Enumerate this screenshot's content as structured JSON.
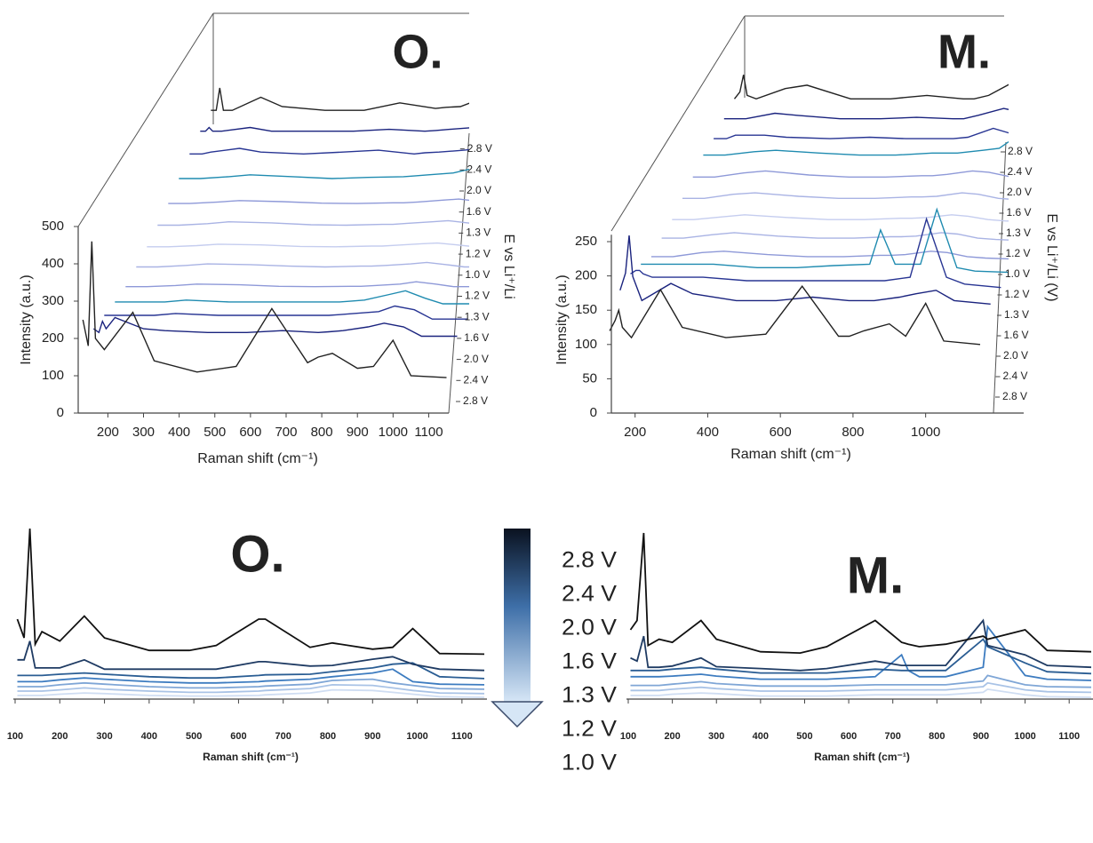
{
  "chart_data": [
    {
      "type": "line",
      "title": "O.",
      "x_label": "Raman shift (cm⁻¹)",
      "y_label": "Intensity (a.u.)",
      "depth_label": "E vs Li⁺/Li",
      "xlim": [
        120,
        1140
      ],
      "ylim": [
        0,
        500
      ],
      "xticks": [
        200,
        300,
        400,
        500,
        600,
        700,
        800,
        900,
        1000,
        1100
      ],
      "yticks": [
        0,
        100,
        200,
        300,
        400,
        500
      ],
      "x": [
        130,
        145,
        155,
        165,
        190,
        270,
        330,
        450,
        560,
        660,
        760,
        790,
        830,
        900,
        945,
        1000,
        1050,
        1150
      ],
      "series": [
        {
          "name": "2.8 V",
          "color": "#222222",
          "values": [
            250,
            180,
            460,
            200,
            170,
            270,
            140,
            110,
            125,
            280,
            135,
            150,
            160,
            120,
            125,
            195,
            100,
            95
          ]
        },
        {
          "name": "2.4 V",
          "color": "#1a237e",
          "values": [
            170,
            160,
            190,
            170,
            200,
            170,
            165,
            160,
            160,
            165,
            160,
            162,
            165,
            175,
            185,
            175,
            150,
            150
          ]
        },
        {
          "name": "2.0 V",
          "color": "#283593",
          "values": [
            150,
            150,
            150,
            150,
            150,
            150,
            155,
            150,
            150,
            150,
            150,
            152,
            155,
            160,
            175,
            165,
            140,
            140
          ]
        },
        {
          "name": "1.6 V",
          "color": "#1f8bb0",
          "values": [
            130,
            130,
            130,
            130,
            130,
            130,
            135,
            130,
            130,
            130,
            130,
            132,
            135,
            150,
            160,
            140,
            125,
            125
          ]
        },
        {
          "name": "1.3 V",
          "color": "#8e99d8",
          "values": [
            115,
            115,
            115,
            115,
            115,
            118,
            122,
            120,
            116,
            115,
            116,
            116,
            118,
            122,
            128,
            122,
            115,
            115
          ]
        },
        {
          "name": "1.2 V",
          "color": "#a9b3e4",
          "values": [
            112,
            112,
            112,
            112,
            112,
            116,
            120,
            118,
            114,
            112,
            114,
            114,
            116,
            120,
            124,
            118,
            112,
            112
          ]
        },
        {
          "name": "1.0 V",
          "color": "#c5cdef",
          "values": [
            110,
            110,
            110,
            110,
            110,
            113,
            117,
            115,
            111,
            110,
            112,
            112,
            114,
            118,
            120,
            115,
            110,
            110
          ]
        },
        {
          "name": "1.2 V",
          "color": "#a9b3e4",
          "values": [
            112,
            112,
            112,
            112,
            112,
            116,
            121,
            118,
            113,
            112,
            114,
            114,
            117,
            121,
            124,
            118,
            112,
            112
          ]
        },
        {
          "name": "1.3 V",
          "color": "#8e99d8",
          "values": [
            114,
            114,
            114,
            114,
            114,
            118,
            122,
            119,
            115,
            114,
            116,
            116,
            118,
            123,
            126,
            120,
            114,
            114
          ]
        },
        {
          "name": "1.6 V",
          "color": "#1f8bb0",
          "values": [
            125,
            125,
            125,
            125,
            125,
            130,
            135,
            130,
            125,
            128,
            130,
            132,
            135,
            140,
            150,
            140,
            120,
            120
          ]
        },
        {
          "name": "2.0 V",
          "color": "#283593",
          "values": [
            135,
            135,
            135,
            135,
            140,
            150,
            140,
            135,
            140,
            145,
            135,
            138,
            140,
            145,
            150,
            160,
            135,
            135
          ]
        },
        {
          "name": "2.4 V",
          "color": "#1a237e",
          "values": [
            140,
            140,
            150,
            140,
            140,
            150,
            140,
            140,
            140,
            145,
            140,
            142,
            145,
            150,
            155,
            150,
            165,
            130
          ]
        },
        {
          "name": "2.8 V",
          "color": "#222222",
          "values": [
            140,
            140,
            200,
            140,
            140,
            175,
            150,
            140,
            140,
            160,
            145,
            148,
            150,
            175,
            160,
            145,
            150,
            150
          ]
        }
      ]
    },
    {
      "type": "line",
      "title": "M.",
      "x_label": "Raman shift (cm⁻¹)",
      "y_label": "Intensity (a.u.)",
      "depth_label": "E vs Li⁺/Li (V)",
      "xlim": [
        120,
        1270
      ],
      "ylim": [
        0,
        260
      ],
      "xticks": [
        200,
        400,
        600,
        800,
        1000
      ],
      "yticks": [
        0,
        50,
        100,
        150,
        200,
        250
      ],
      "x": [
        130,
        145,
        155,
        165,
        190,
        270,
        330,
        450,
        560,
        660,
        760,
        790,
        830,
        900,
        945,
        1000,
        1050,
        1150
      ],
      "series": [
        {
          "name": "2.8 V",
          "color": "#222222",
          "values": [
            120,
            135,
            150,
            125,
            110,
            180,
            125,
            110,
            115,
            185,
            112,
            112,
            120,
            130,
            112,
            160,
            105,
            100
          ]
        },
        {
          "name": "2.4 V",
          "color": "#1a237e",
          "values": [
            150,
            175,
            230,
            170,
            135,
            160,
            145,
            135,
            135,
            140,
            135,
            135,
            135,
            140,
            145,
            150,
            135,
            130
          ]
        },
        {
          "name": "2.0 V",
          "color": "#283593",
          "values": [
            145,
            150,
            150,
            145,
            140,
            140,
            140,
            135,
            135,
            135,
            135,
            135,
            135,
            140,
            225,
            140,
            130,
            125
          ]
        },
        {
          "name": "1.6 V",
          "color": "#1f8bb0",
          "values": [
            130,
            130,
            130,
            130,
            130,
            130,
            130,
            125,
            125,
            128,
            130,
            180,
            130,
            130,
            210,
            125,
            120,
            118
          ]
        },
        {
          "name": "1.3 V",
          "color": "#8e99d8",
          "values": [
            112,
            112,
            112,
            112,
            112,
            118,
            120,
            115,
            112,
            112,
            114,
            114,
            115,
            120,
            118,
            112,
            110,
            108
          ]
        },
        {
          "name": "1.2 V",
          "color": "#a9b3e4",
          "values": [
            110,
            110,
            110,
            110,
            110,
            115,
            118,
            113,
            110,
            110,
            112,
            112,
            113,
            118,
            116,
            110,
            108,
            106
          ]
        },
        {
          "name": "1.0 V",
          "color": "#c5cdef",
          "values": [
            108,
            108,
            108,
            108,
            108,
            112,
            115,
            111,
            108,
            108,
            110,
            110,
            111,
            115,
            113,
            108,
            106,
            105
          ]
        },
        {
          "name": "1.2 V",
          "color": "#a9b3e4",
          "values": [
            110,
            110,
            110,
            110,
            110,
            116,
            118,
            113,
            110,
            110,
            112,
            112,
            113,
            118,
            116,
            110,
            108,
            106
          ]
        },
        {
          "name": "1.3 V",
          "color": "#8e99d8",
          "values": [
            112,
            112,
            112,
            112,
            112,
            118,
            121,
            115,
            112,
            112,
            114,
            114,
            116,
            121,
            119,
            113,
            110,
            108
          ]
        },
        {
          "name": "1.6 V",
          "color": "#1f8bb0",
          "values": [
            115,
            115,
            115,
            115,
            115,
            120,
            122,
            118,
            115,
            115,
            118,
            118,
            118,
            122,
            125,
            145,
            118,
            115
          ]
        },
        {
          "name": "2.0 V",
          "color": "#283593",
          "values": [
            110,
            110,
            110,
            110,
            115,
            115,
            112,
            110,
            112,
            110,
            110,
            110,
            112,
            125,
            118,
            150,
            110,
            108
          ]
        },
        {
          "name": "2.4 V",
          "color": "#1a237e",
          "values": [
            110,
            110,
            110,
            110,
            110,
            118,
            115,
            110,
            110,
            112,
            110,
            110,
            115,
            125,
            120,
            115,
            140,
            108
          ]
        },
        {
          "name": "2.8 V",
          "color": "#222222",
          "values": [
            110,
            120,
            145,
            115,
            110,
            125,
            130,
            110,
            110,
            115,
            110,
            110,
            115,
            135,
            120,
            115,
            130,
            115
          ]
        }
      ]
    },
    {
      "type": "line",
      "title": "O.",
      "x_label": "Raman shift (cm⁻¹)",
      "xlim": [
        100,
        1150
      ],
      "xticks": [
        100,
        200,
        300,
        400,
        500,
        600,
        700,
        800,
        900,
        1000,
        1100
      ],
      "x": [
        105,
        120,
        133,
        145,
        160,
        200,
        255,
        300,
        400,
        490,
        550,
        645,
        660,
        760,
        810,
        900,
        945,
        990,
        1050,
        1150
      ],
      "series": [
        {
          "name": "2.8 V",
          "color": "#111111",
          "values": [
            160,
            130,
            305,
            120,
            140,
            125,
            165,
            130,
            110,
            110,
            118,
            160,
            160,
            115,
            122,
            112,
            115,
            145,
            105,
            104
          ]
        },
        {
          "name": "2.4 V",
          "color": "#1f3b63",
          "values": [
            95,
            95,
            125,
            82,
            82,
            82,
            95,
            80,
            80,
            80,
            80,
            92,
            92,
            85,
            86,
            96,
            100,
            88,
            80,
            78
          ]
        },
        {
          "name": "2.0 V",
          "color": "#2a5d93",
          "values": [
            70,
            70,
            70,
            70,
            70,
            72,
            74,
            72,
            68,
            66,
            66,
            70,
            71,
            72,
            76,
            82,
            88,
            90,
            68,
            65
          ]
        },
        {
          "name": "1.6 V",
          "color": "#3d7cc0",
          "values": [
            60,
            60,
            60,
            60,
            60,
            63,
            66,
            64,
            60,
            58,
            58,
            60,
            61,
            64,
            68,
            74,
            80,
            60,
            56,
            55
          ]
        },
        {
          "name": "1.3 V",
          "color": "#7fa6d6",
          "values": [
            52,
            52,
            52,
            52,
            52,
            55,
            58,
            56,
            52,
            50,
            50,
            52,
            53,
            56,
            62,
            64,
            58,
            54,
            49,
            48
          ]
        },
        {
          "name": "1.2 V",
          "color": "#a9c3e6",
          "values": [
            45,
            45,
            45,
            45,
            45,
            47,
            50,
            48,
            45,
            43,
            43,
            45,
            46,
            49,
            55,
            54,
            50,
            46,
            42,
            41
          ]
        },
        {
          "name": "1.0 V",
          "color": "#cfddf2",
          "values": [
            38,
            38,
            38,
            38,
            38,
            40,
            42,
            41,
            38,
            37,
            37,
            38,
            39,
            42,
            47,
            46,
            43,
            40,
            36,
            35
          ]
        }
      ]
    },
    {
      "type": "line",
      "title": "M.",
      "x_label": "Raman shift (cm⁻¹)",
      "xlim": [
        100,
        1150
      ],
      "xticks": [
        100,
        200,
        300,
        400,
        500,
        600,
        700,
        800,
        900,
        1000,
        1100
      ],
      "x": [
        105,
        120,
        135,
        145,
        170,
        200,
        265,
        300,
        400,
        490,
        550,
        660,
        720,
        735,
        760,
        820,
        905,
        915,
        1000,
        1050,
        1150
      ],
      "series": [
        {
          "color": "#111111",
          "values": [
            145,
            160,
            300,
            120,
            130,
            125,
            160,
            130,
            110,
            108,
            118,
            160,
            125,
            122,
            118,
            122,
            135,
            130,
            145,
            112,
            110
          ]
        },
        {
          "color": "#1f3b63",
          "values": [
            100,
            95,
            135,
            85,
            85,
            87,
            100,
            86,
            83,
            80,
            83,
            95,
            88,
            88,
            88,
            88,
            160,
            120,
            105,
            88,
            85
          ]
        },
        {
          "color": "#2a5d93",
          "values": [
            80,
            80,
            80,
            80,
            80,
            82,
            85,
            82,
            76,
            76,
            76,
            82,
            80,
            80,
            80,
            80,
            130,
            118,
            92,
            78,
            75
          ]
        },
        {
          "color": "#3d7cc0",
          "values": [
            70,
            70,
            70,
            70,
            70,
            71,
            74,
            71,
            66,
            66,
            66,
            70,
            105,
            80,
            70,
            70,
            85,
            150,
            72,
            66,
            64
          ]
        },
        {
          "color": "#7fa6d6",
          "values": [
            56,
            56,
            56,
            56,
            56,
            58,
            62,
            59,
            55,
            55,
            55,
            57,
            57,
            57,
            57,
            57,
            63,
            72,
            57,
            54,
            53
          ]
        },
        {
          "color": "#a9c3e6",
          "values": [
            48,
            48,
            48,
            48,
            48,
            50,
            53,
            51,
            47,
            47,
            47,
            49,
            49,
            49,
            49,
            49,
            54,
            60,
            49,
            46,
            45
          ]
        },
        {
          "color": "#cfddf2",
          "values": [
            40,
            40,
            40,
            40,
            40,
            42,
            44,
            43,
            39,
            39,
            39,
            41,
            41,
            41,
            41,
            41,
            45,
            50,
            41,
            38,
            37
          ]
        }
      ]
    }
  ]
}
